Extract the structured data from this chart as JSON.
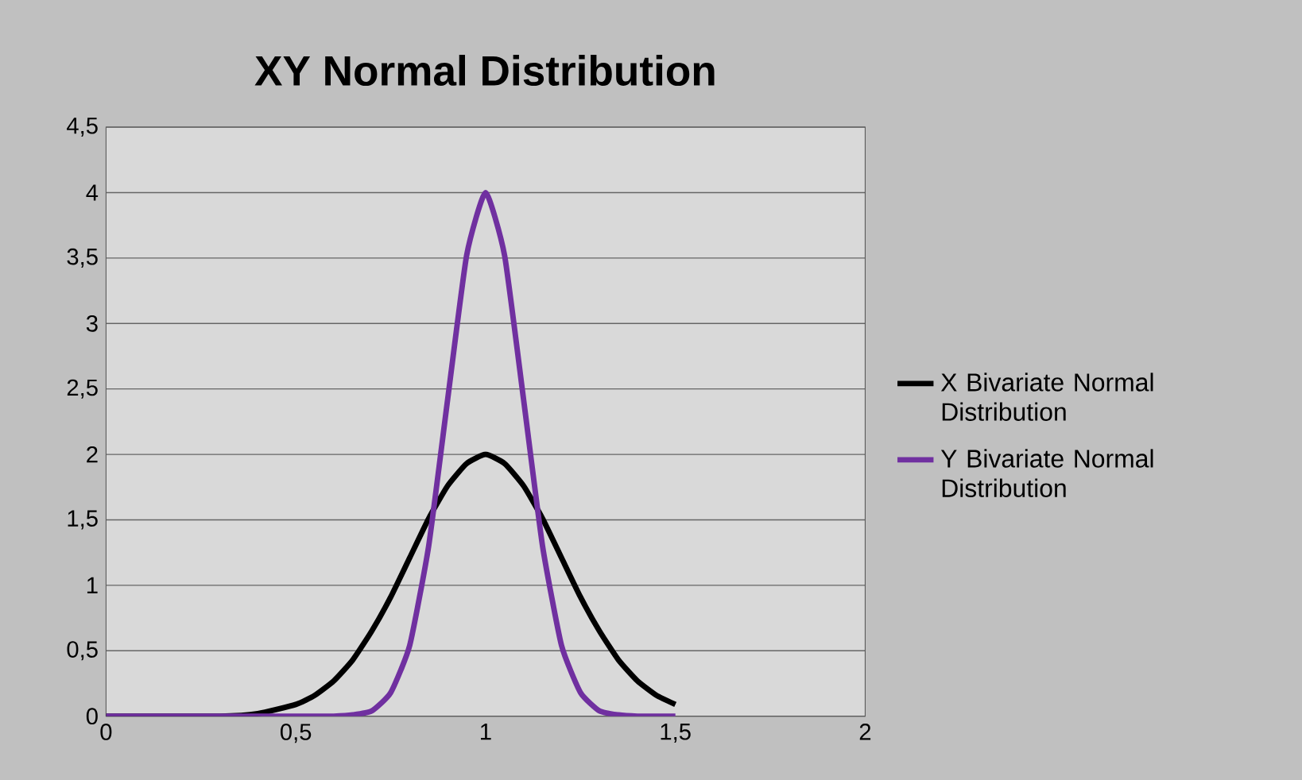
{
  "chart_data": {
    "type": "line",
    "title": "XY Normal Distribution",
    "x": [
      0,
      0.3,
      0.4,
      0.5,
      0.55,
      0.6,
      0.65,
      0.7,
      0.75,
      0.8,
      0.85,
      0.9,
      0.95,
      1.0,
      1.05,
      1.1,
      1.15,
      1.2,
      1.25,
      1.3,
      1.35,
      1.4,
      1.45,
      1.5
    ],
    "series": [
      {
        "name": "X Bivariate Normal Distribution",
        "color": "#000000",
        "values": [
          0,
          0,
          0.02,
          0.09,
          0.16,
          0.27,
          0.43,
          0.65,
          0.91,
          1.21,
          1.51,
          1.76,
          1.93,
          2.0,
          1.93,
          1.76,
          1.51,
          1.21,
          0.91,
          0.65,
          0.43,
          0.27,
          0.16,
          0.09
        ]
      },
      {
        "name": "Y Bivariate Normal Distribution",
        "color": "#7030a0",
        "values": [
          0,
          0,
          0,
          0,
          0,
          0,
          0.01,
          0.04,
          0.18,
          0.54,
          1.3,
          2.42,
          3.52,
          4.0,
          3.52,
          2.42,
          1.3,
          0.54,
          0.18,
          0.04,
          0.01,
          0,
          0,
          0
        ]
      }
    ],
    "xlim": [
      0,
      2
    ],
    "ylim": [
      0,
      4.5
    ],
    "xticks": [
      0,
      {
        "value": 0.5,
        "label": "0,5"
      },
      1,
      {
        "value": 1.5,
        "label": "1,5"
      },
      2
    ],
    "yticks": [
      0,
      {
        "value": 0.5,
        "label": "0,5"
      },
      1,
      {
        "value": 1.5,
        "label": "1,5"
      },
      2,
      {
        "value": 2.5,
        "label": "2,5"
      },
      3,
      {
        "value": 3.5,
        "label": "3,5"
      },
      4,
      {
        "value": 4.5,
        "label": "4,5"
      }
    ],
    "grid": "y",
    "legend": "right",
    "marker": "none",
    "line_style": "solid"
  }
}
